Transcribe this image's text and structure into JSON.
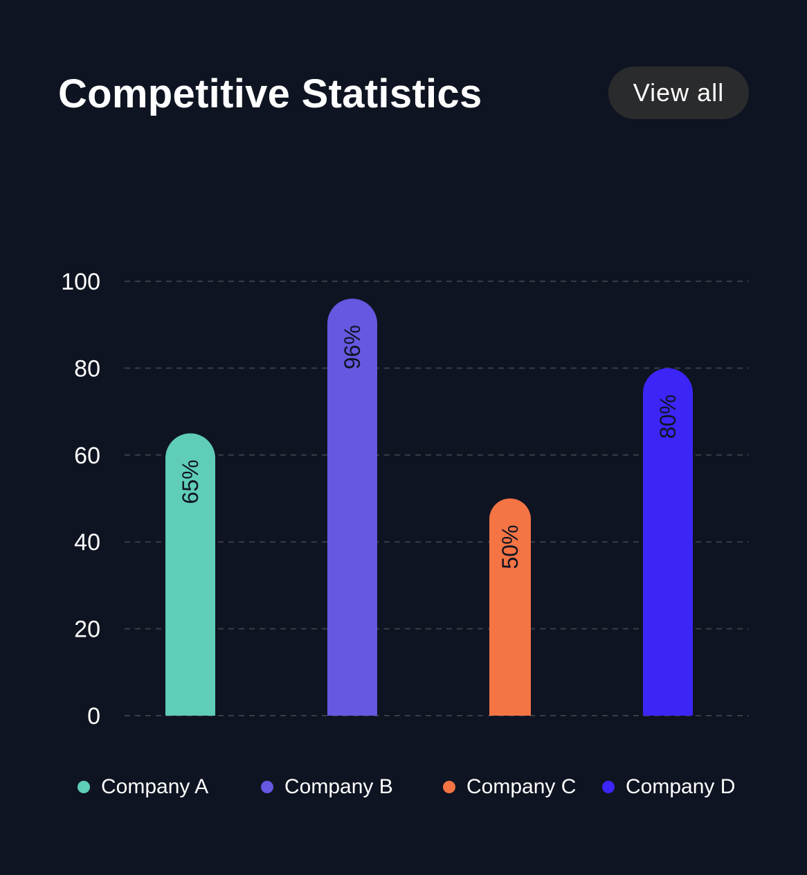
{
  "header": {
    "title": "Competitive Statistics",
    "view_all_label": "View all"
  },
  "colors": {
    "background": "#0f1422",
    "grid": "#3a3d44",
    "axis_text": "#ffffff",
    "bar_label": "#0f1422",
    "button_bg": "#2a2b2d"
  },
  "chart_data": {
    "type": "bar",
    "title": "Competitive Statistics",
    "categories": [
      "Company A",
      "Company B",
      "Company C",
      "Company D"
    ],
    "values": [
      65,
      96,
      50,
      80
    ],
    "value_labels": [
      "65%",
      "96%",
      "50%",
      "80%"
    ],
    "bar_colors": [
      "#5fcdb7",
      "#6658e0",
      "#f47444",
      "#3c26f7"
    ],
    "ylim": [
      0,
      100
    ],
    "yticks": [
      0,
      20,
      40,
      60,
      80,
      100
    ],
    "ytick_labels": [
      "0",
      "20",
      "40",
      "60",
      "80",
      "100"
    ],
    "grid": true,
    "grid_style": "dashed",
    "xlabel": "",
    "ylabel": "",
    "legend_position": "bottom"
  },
  "legend": {
    "items": [
      {
        "label": "Company A",
        "color": "#5fcdb7"
      },
      {
        "label": "Company B",
        "color": "#6658e0"
      },
      {
        "label": "Company C",
        "color": "#f47444"
      },
      {
        "label": "Company D",
        "color": "#3c26f7"
      }
    ]
  }
}
